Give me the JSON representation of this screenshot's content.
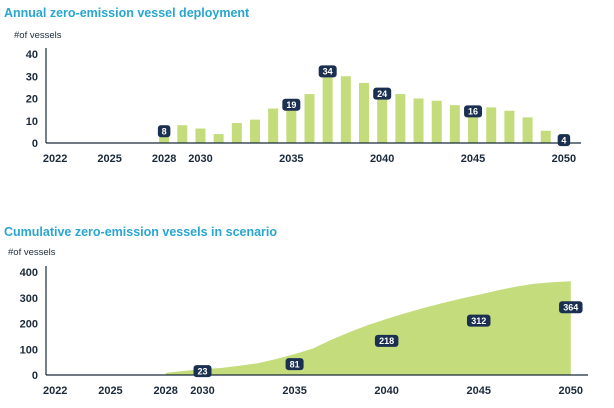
{
  "colors": {
    "title": "#29a6cf",
    "bar": "#c4dc7c",
    "label_bg": "#1b3050",
    "axis": "#1b2a3a"
  },
  "chart_data": [
    {
      "type": "bar",
      "title": "Annual zero-emission vessel deployment",
      "ylabel": "#of vessels",
      "ylim": [
        0,
        40
      ],
      "yticks": [
        0,
        10,
        20,
        30,
        40
      ],
      "xlim": [
        2021.5,
        2050.5
      ],
      "xticks": [
        "2022",
        "2025",
        "2028",
        "2030",
        "2035",
        "2040",
        "2045",
        "2050"
      ],
      "x": [
        2028,
        2029,
        2030,
        2031,
        2032,
        2033,
        2034,
        2035,
        2036,
        2037,
        2038,
        2039,
        2040,
        2041,
        2042,
        2043,
        2044,
        2045,
        2046,
        2047,
        2048,
        2049,
        2050
      ],
      "values": [
        8,
        8,
        6.5,
        4,
        9,
        10.5,
        15.5,
        19,
        22,
        34,
        30,
        27,
        24,
        22,
        20,
        19,
        17,
        16,
        16,
        14.5,
        11.5,
        5.5,
        4
      ],
      "data_labels": [
        {
          "x": 2028,
          "text": "8"
        },
        {
          "x": 2035,
          "text": "19"
        },
        {
          "x": 2037,
          "text": "34"
        },
        {
          "x": 2040,
          "text": "24"
        },
        {
          "x": 2045,
          "text": "16"
        },
        {
          "x": 2050,
          "text": "4"
        }
      ],
      "grid": false
    },
    {
      "type": "area",
      "title": "Cumulative zero-emission vessels in scenario",
      "ylabel": "#of vessels",
      "ylim": [
        0,
        400
      ],
      "yticks": [
        0,
        100,
        200,
        300,
        400
      ],
      "xlim": [
        2021.5,
        2050.5
      ],
      "xticks": [
        "2022",
        "2025",
        "2028",
        "2030",
        "2035",
        "2040",
        "2045",
        "2050"
      ],
      "x": [
        2028,
        2029,
        2030,
        2031,
        2032,
        2033,
        2034,
        2035,
        2036,
        2037,
        2038,
        2039,
        2040,
        2041,
        2042,
        2043,
        2044,
        2045,
        2046,
        2047,
        2048,
        2049,
        2050
      ],
      "values": [
        8,
        16,
        23,
        27,
        36,
        46,
        62,
        81,
        103,
        137,
        167,
        194,
        218,
        240,
        260,
        279,
        296,
        312,
        328,
        343,
        354,
        360,
        364
      ],
      "data_labels": [
        {
          "x": 2030,
          "text": "23"
        },
        {
          "x": 2035,
          "text": "81"
        },
        {
          "x": 2040,
          "text": "218"
        },
        {
          "x": 2045,
          "text": "312"
        },
        {
          "x": 2050,
          "text": "364"
        }
      ],
      "grid": false
    }
  ]
}
